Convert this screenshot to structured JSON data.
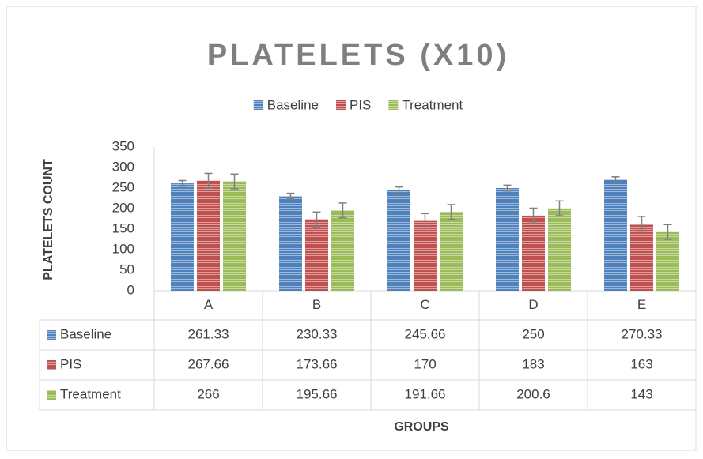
{
  "chart_data": {
    "type": "bar",
    "title": "PLATELETS (X10)",
    "x_label": "GROUPS",
    "y_label": "PLATELETS COUNT",
    "categories": [
      "A",
      "B",
      "C",
      "D",
      "E"
    ],
    "series": [
      {
        "name": "Baseline",
        "color": "#4f81bd",
        "values": [
          261.33,
          230.33,
          245.66,
          250,
          270.33
        ],
        "errors": [
          7,
          7,
          7,
          7,
          7
        ]
      },
      {
        "name": "PIS",
        "color": "#c0504d",
        "values": [
          267.66,
          173.66,
          170,
          183,
          163
        ],
        "errors": [
          18,
          18,
          18,
          18,
          18
        ]
      },
      {
        "name": "Treatment",
        "color": "#9bbb59",
        "values": [
          266,
          195.66,
          191.66,
          200.6,
          143
        ],
        "errors": [
          18,
          18,
          18,
          18,
          18
        ]
      }
    ],
    "ylim": [
      0,
      350
    ],
    "yticks": [
      0,
      50,
      100,
      150,
      200,
      250,
      300,
      350
    ],
    "grid": false,
    "legend": "top",
    "data_table": true
  }
}
